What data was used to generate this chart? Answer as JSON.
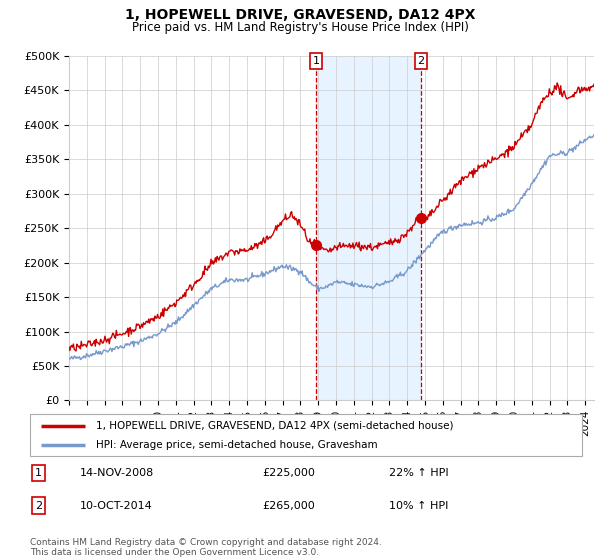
{
  "title": "1, HOPEWELL DRIVE, GRAVESEND, DA12 4PX",
  "subtitle": "Price paid vs. HM Land Registry's House Price Index (HPI)",
  "ylabel_ticks": [
    "£0",
    "£50K",
    "£100K",
    "£150K",
    "£200K",
    "£250K",
    "£300K",
    "£350K",
    "£400K",
    "£450K",
    "£500K"
  ],
  "ytick_values": [
    0,
    50000,
    100000,
    150000,
    200000,
    250000,
    300000,
    350000,
    400000,
    450000,
    500000
  ],
  "ylim": [
    0,
    500000
  ],
  "xlim_start": 1995.0,
  "xlim_end": 2024.5,
  "line1_color": "#cc0000",
  "line2_color": "#7799cc",
  "sale1_date": 2008.87,
  "sale1_price": 225000,
  "sale2_date": 2014.78,
  "sale2_price": 265000,
  "sale_marker_color": "#cc0000",
  "vline_color": "#cc0000",
  "shade_color": "#ddeeff",
  "legend_label1": "1, HOPEWELL DRIVE, GRAVESEND, DA12 4PX (semi-detached house)",
  "legend_label2": "HPI: Average price, semi-detached house, Gravesham",
  "annotation1_date": "14-NOV-2008",
  "annotation1_price": "£225,000",
  "annotation1_hpi": "22% ↑ HPI",
  "annotation2_date": "10-OCT-2014",
  "annotation2_price": "£265,000",
  "annotation2_hpi": "10% ↑ HPI",
  "footer": "Contains HM Land Registry data © Crown copyright and database right 2024.\nThis data is licensed under the Open Government Licence v3.0.",
  "background_color": "#ffffff",
  "grid_color": "#cccccc",
  "hpi_control_x": [
    1995.0,
    1996.0,
    1997.0,
    1998.0,
    1999.0,
    2000.0,
    2001.0,
    2002.0,
    2003.0,
    2004.0,
    2005.0,
    2006.0,
    2007.0,
    2008.0,
    2008.5,
    2009.0,
    2009.5,
    2010.0,
    2011.0,
    2012.0,
    2013.0,
    2014.0,
    2015.0,
    2016.0,
    2017.0,
    2018.0,
    2019.0,
    2020.0,
    2021.0,
    2022.0,
    2023.0,
    2023.5,
    2024.0,
    2024.5
  ],
  "hpi_control_y": [
    60000,
    65000,
    72000,
    78000,
    86000,
    97000,
    113000,
    138000,
    162000,
    175000,
    175000,
    184000,
    195000,
    188000,
    172000,
    162000,
    165000,
    172000,
    168000,
    165000,
    172000,
    188000,
    218000,
    245000,
    255000,
    258000,
    265000,
    278000,
    315000,
    355000,
    360000,
    368000,
    378000,
    385000
  ],
  "red_control_x": [
    1995.0,
    1996.0,
    1997.0,
    1998.0,
    1999.0,
    2000.0,
    2001.0,
    2002.0,
    2003.0,
    2004.0,
    2005.0,
    2006.0,
    2007.0,
    2007.5,
    2008.0,
    2008.5,
    2008.87,
    2009.0,
    2009.5,
    2010.0,
    2011.0,
    2012.0,
    2013.0,
    2014.0,
    2014.4,
    2014.78,
    2015.0,
    2016.0,
    2017.0,
    2018.0,
    2019.0,
    2020.0,
    2021.0,
    2021.5,
    2022.0,
    2022.5,
    2023.0,
    2023.5,
    2024.0,
    2024.5
  ],
  "red_control_y": [
    75000,
    80000,
    88000,
    97000,
    108000,
    122000,
    142000,
    168000,
    198000,
    215000,
    218000,
    230000,
    260000,
    270000,
    255000,
    230000,
    225000,
    222000,
    215000,
    222000,
    225000,
    222000,
    228000,
    242000,
    258000,
    265000,
    260000,
    290000,
    318000,
    338000,
    350000,
    368000,
    400000,
    430000,
    448000,
    455000,
    435000,
    450000,
    453000,
    455000
  ]
}
